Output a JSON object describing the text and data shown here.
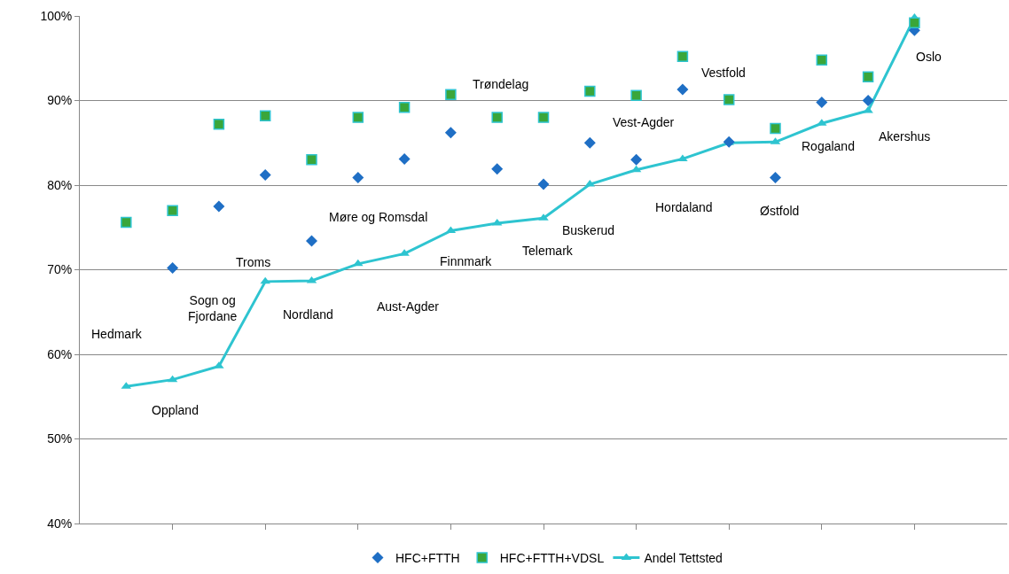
{
  "chart_data": {
    "type": "scatter",
    "categories": [
      null,
      null,
      null,
      null,
      null,
      null,
      null,
      null,
      null,
      null,
      null,
      null,
      null,
      null,
      null,
      null,
      null,
      null
    ],
    "series": [
      {
        "name": "HFC+FTTH",
        "marker": "diamond",
        "color": "#1f6fc5",
        "values": [
          null,
          70.2,
          77.5,
          81.2,
          73.4,
          80.9,
          83.1,
          86.2,
          81.9,
          80.1,
          85.0,
          83.0,
          91.3,
          85.1,
          80.9,
          89.8,
          90.0,
          98.3
        ]
      },
      {
        "name": "HFC+FTTH+VDSL",
        "marker": "square",
        "color": "#3aa63a",
        "values": [
          75.6,
          77.0,
          87.2,
          88.2,
          83.0,
          88.0,
          89.2,
          90.7,
          88.0,
          88.0,
          91.1,
          90.6,
          95.2,
          90.1,
          86.7,
          94.8,
          92.8,
          99.2
        ]
      },
      {
        "name": "Andel Tettsted",
        "type": "line",
        "marker": "triangle",
        "color": "#2ec4d0",
        "values": [
          56.2,
          57.0,
          58.6,
          68.6,
          68.7,
          70.7,
          71.9,
          74.6,
          75.5,
          76.1,
          80.1,
          81.8,
          83.1,
          85.0,
          85.1,
          87.3,
          88.8,
          99.8
        ]
      }
    ],
    "annotations": [
      "Hedmark",
      "Oppland",
      "Sogn og\nFjordane",
      "Troms",
      "Nordland",
      "Møre og Romsdal",
      "Aust-Agder",
      "Finnmark",
      "Trøndelag",
      "Telemark",
      "Buskerud",
      "Vest-Agder",
      "Hordaland",
      "Vestfold",
      "Østfold",
      "Rogaland",
      "Akershus",
      "Oslo"
    ],
    "ylim": [
      40,
      100
    ],
    "yticks": [
      {
        "value": 40,
        "label": "40%"
      },
      {
        "value": 50,
        "label": "50%"
      },
      {
        "value": 60,
        "label": "60%"
      },
      {
        "value": 70,
        "label": "70%"
      },
      {
        "value": 80,
        "label": "80%"
      },
      {
        "value": 90,
        "label": "90%"
      },
      {
        "value": 100,
        "label": "100%"
      }
    ],
    "grid": "y",
    "legend": "bottom",
    "tick_labels": "y"
  }
}
